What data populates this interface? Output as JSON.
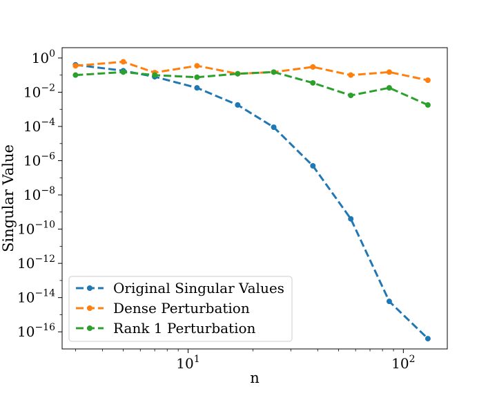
{
  "chart_data": {
    "type": "line",
    "title": "",
    "xlabel": "n",
    "ylabel": "Singular Value",
    "xscale": "log",
    "yscale": "log",
    "xlim": [
      2.6,
      160
    ],
    "ylim": [
      1e-17,
      4
    ],
    "x": [
      3,
      5,
      7,
      11,
      17,
      25,
      38,
      57,
      86,
      130
    ],
    "x_ticks": [
      {
        "value": 10,
        "base": "10",
        "exp": "1"
      },
      {
        "value": 100,
        "base": "10",
        "exp": "2"
      }
    ],
    "y_ticks": [
      {
        "value": 1,
        "base": "10",
        "exp": "0"
      },
      {
        "value": 0.01,
        "base": "10",
        "exp": "−2"
      },
      {
        "value": 0.0001,
        "base": "10",
        "exp": "−4"
      },
      {
        "value": 1e-06,
        "base": "10",
        "exp": "−6"
      },
      {
        "value": 1e-08,
        "base": "10",
        "exp": "−8"
      },
      {
        "value": 1e-10,
        "base": "10",
        "exp": "−10"
      },
      {
        "value": 1e-12,
        "base": "10",
        "exp": "−12"
      },
      {
        "value": 1e-14,
        "base": "10",
        "exp": "−14"
      },
      {
        "value": 1e-16,
        "base": "10",
        "exp": "−16"
      }
    ],
    "grid": false,
    "legend_position": "lower-left",
    "series": [
      {
        "name": "Original Singular Values",
        "color": "#1f77b4",
        "values": [
          0.4,
          0.18,
          0.08,
          0.018,
          0.0018,
          9e-05,
          5e-07,
          4e-10,
          6e-15,
          4e-17
        ]
      },
      {
        "name": "Dense Perturbation",
        "color": "#ff7f0e",
        "values": [
          0.35,
          0.6,
          0.14,
          0.35,
          0.12,
          0.15,
          0.3,
          0.1,
          0.15,
          0.05
        ]
      },
      {
        "name": "Rank 1 Perturbation",
        "color": "#2ca02c",
        "values": [
          0.1,
          0.15,
          0.1,
          0.075,
          0.12,
          0.15,
          0.035,
          0.0065,
          0.018,
          0.0018
        ]
      }
    ]
  }
}
